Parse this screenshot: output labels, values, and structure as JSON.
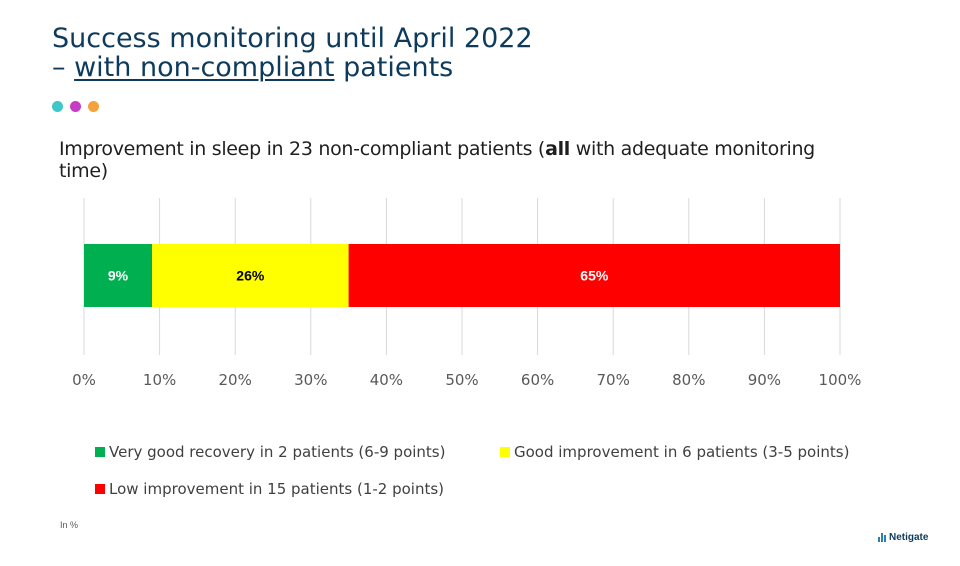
{
  "title": {
    "line1": "Success monitoring until April 2022",
    "line2_prefix": "– ",
    "line2_underlined": "with non-compliant",
    "line2_suffix": " patients"
  },
  "dots": [
    {
      "name": "teal-dot",
      "color": "#3ec6c9"
    },
    {
      "name": "magenta-dot",
      "color": "#c63cc2"
    },
    {
      "name": "orange-dot",
      "color": "#f4a33c"
    }
  ],
  "subtitle": {
    "before": "Improvement in sleep in 23 non-compliant patients (",
    "bold": "all",
    "after": " with adequate monitoring time)"
  },
  "chart_data": {
    "type": "bar",
    "orientation": "horizontal-stacked",
    "series": [
      {
        "name": "Very good recovery in 2 patients (6-9 points)",
        "values": [
          9
        ],
        "color": "#00b050",
        "label": "9%",
        "label_color": "#ffffff"
      },
      {
        "name": "Good improvement in 6 patients (3-5 points)",
        "values": [
          26
        ],
        "color": "#ffff00",
        "label": "26%",
        "label_color": "#000000"
      },
      {
        "name": "Low improvement in 15 patients (1-2 points)",
        "values": [
          65
        ],
        "color": "#ff0000",
        "label": "65%",
        "label_color": "#ffffff"
      }
    ],
    "xlim": [
      0,
      100
    ],
    "xticks": [
      "0%",
      "10%",
      "20%",
      "30%",
      "40%",
      "50%",
      "60%",
      "70%",
      "80%",
      "90%",
      "100%"
    ],
    "grid": true,
    "legend_position": "bottom"
  },
  "note": "In %",
  "logo": "Netigate"
}
